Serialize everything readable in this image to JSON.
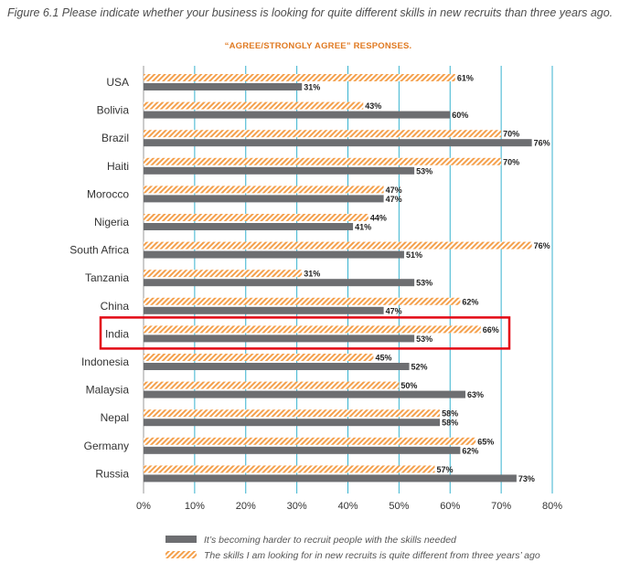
{
  "figure_title": "Figure 6.1  Please indicate whether your business is looking for quite different skills in new recruits than three years ago.",
  "colors": {
    "accent": "#f4a04c",
    "solid": "#6d6e71",
    "grid": "#37b2cf",
    "highlight": "#e30613"
  },
  "highlighted_category": "India",
  "chart_data": {
    "type": "bar",
    "orientation": "horizontal",
    "subtitle": "“AGREE/STRONGLY AGREE” RESPONSES.",
    "categories": [
      "USA",
      "Bolivia",
      "Brazil",
      "Haiti",
      "Morocco",
      "Nigeria",
      "South Africa",
      "Tanzania",
      "China",
      "India",
      "Indonesia",
      "Malaysia",
      "Nepal",
      "Germany",
      "Russia"
    ],
    "series": [
      {
        "name": "The skills I am looking for in new recruits is quite different from three years’ ago",
        "style": "hatched",
        "color": "#f4a04c",
        "values": [
          61,
          43,
          70,
          70,
          47,
          44,
          76,
          31,
          62,
          66,
          45,
          50,
          58,
          65,
          57
        ],
        "labels": [
          "61%",
          "43%",
          "70%",
          "70%",
          "47%",
          "44%",
          "76%",
          "31%",
          "62%",
          "66%",
          "45%",
          "50%",
          "58%",
          "65%",
          "57%"
        ]
      },
      {
        "name": "It’s becoming harder to recruit people with the skills needed",
        "style": "solid",
        "color": "#6d6e71",
        "values": [
          31,
          60,
          76,
          53,
          47,
          41,
          51,
          53,
          47,
          53,
          52,
          63,
          58,
          62,
          73
        ],
        "labels": [
          "31%",
          "60%",
          "76%",
          "53%",
          "47%",
          "41%",
          "51%",
          "53%",
          "47%",
          "53%",
          "52%",
          "63%",
          "58%",
          "62%",
          "73%"
        ]
      }
    ],
    "xlim": [
      0,
      80
    ],
    "xticks": [
      "0%",
      "10%",
      "20%",
      "30%",
      "40%",
      "50%",
      "60%",
      "70%",
      "80%"
    ],
    "xtick_values": [
      0,
      10,
      20,
      30,
      40,
      50,
      60,
      70,
      80
    ],
    "grid": true,
    "legend": {
      "position": "bottom",
      "entries": [
        {
          "label": "It’s becoming harder to recruit people with the skills needed",
          "style": "solid"
        },
        {
          "label": "The skills I am looking for in new recruits is quite different from three years’ ago",
          "style": "hatched"
        }
      ]
    }
  }
}
